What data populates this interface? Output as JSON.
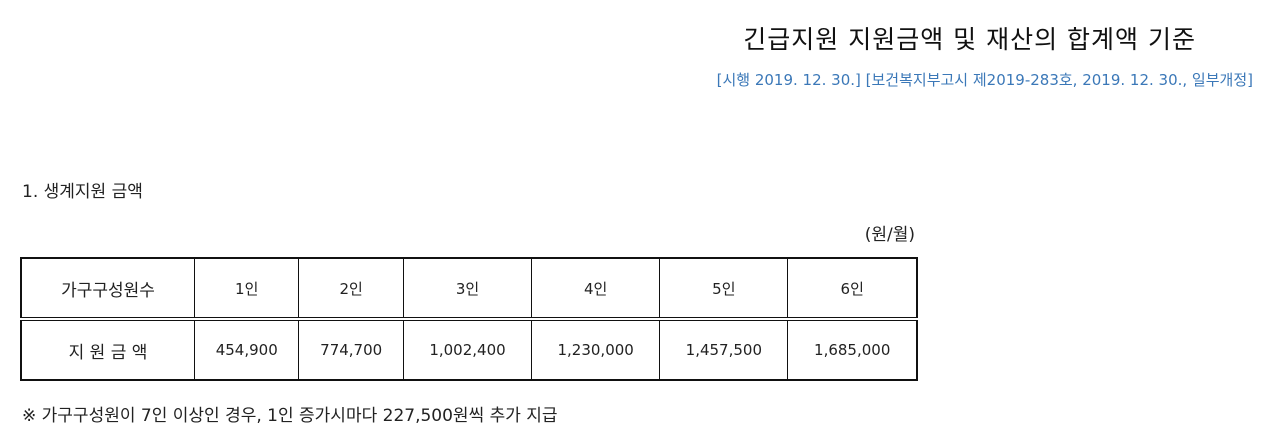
{
  "header": {
    "title": "긴급지원 지원금액 및 재산의 합계액 기준",
    "subtitle": "[시행 2019. 12. 30.] [보건복지부고시 제2019-283호, 2019. 12. 30., 일부개정]"
  },
  "section": {
    "heading": "1. 생계지원 금액",
    "unit": "(원/월)"
  },
  "table": {
    "rows": [
      [
        "가구구성원수",
        "1인",
        "2인",
        "3인",
        "4인",
        "5인",
        "6인"
      ],
      [
        "지 원 금 액",
        "454,900",
        "774,700",
        "1,002,400",
        "1,230,000",
        "1,457,500",
        "1,685,000"
      ]
    ]
  },
  "note": "※ 가구구성원이 7인 이상인 경우, 1인 증가시마다 227,500원씩 추가 지급"
}
